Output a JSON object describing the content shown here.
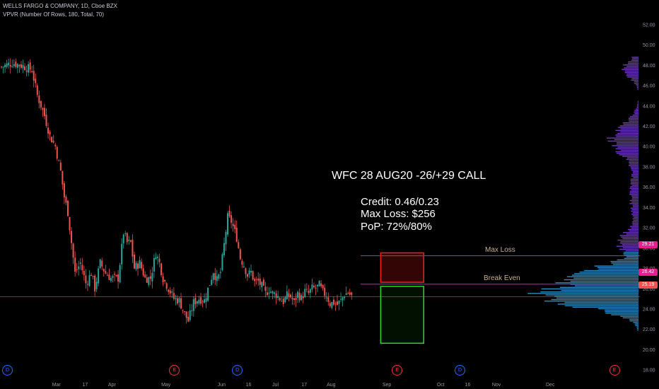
{
  "header": {
    "symbol_line": "WELLS FARGO & COMPANY, 1D, Cboe BZX",
    "indicator_line": "VPVR (Number Of Rows, 180, Total, 70)"
  },
  "annotation": {
    "trade_title": "WFC 28 AUG20  -26/+29 CALL",
    "credit": "Credit: 0.46/0.23",
    "max_loss": "Max Loss: $256",
    "pop": "PoP: 72%/80%",
    "max_loss_label": "Max Loss",
    "break_even_label": "Break Even"
  },
  "price_badges": [
    {
      "value": "29.21",
      "color": "#e91e8c"
    },
    {
      "value": "26.42",
      "color": "#e91e8c"
    },
    {
      "value": "25.19",
      "color": "#ef5350"
    }
  ],
  "events": [
    {
      "label": "D",
      "type": "dividend",
      "color": "#2962ff",
      "day": 0
    },
    {
      "label": "E",
      "type": "earnings",
      "color": "#e53935",
      "day": 93
    },
    {
      "label": "D",
      "type": "dividend",
      "color": "#2962ff",
      "day": 128
    },
    {
      "label": "E",
      "type": "earnings",
      "color": "#e53935",
      "day": 217
    },
    {
      "label": "D",
      "type": "dividend",
      "color": "#2962ff",
      "day": 252
    },
    {
      "label": "E",
      "type": "earnings",
      "color": "#e53935",
      "day": 338
    }
  ],
  "colors": {
    "up": "#26a69a",
    "down": "#ef5350",
    "volume_profile_lower": "#2f9bd8",
    "volume_profile_upper": "#7b3fd6",
    "level_line": "#c028c0",
    "price_line": "#e0506a",
    "loss_box": "#ff1a1a",
    "profit_box": "#22dd22"
  },
  "chart_data": {
    "type": "candlestick",
    "title": "WELLS FARGO & COMPANY, 1D, Cboe BZX",
    "ylim": [
      17.0,
      53.0
    ],
    "y_ticks": [
      "18.00",
      "20.00",
      "22.00",
      "24.00",
      "26.00",
      "28.00",
      "30.00",
      "32.00",
      "34.00",
      "36.00",
      "38.00",
      "40.00",
      "42.00",
      "44.00",
      "46.00",
      "48.00",
      "50.00",
      "52.00"
    ],
    "x_ticks": [
      {
        "label": "Mar",
        "day": 31
      },
      {
        "label": "17",
        "day": 47
      },
      {
        "label": "Apr",
        "day": 62
      },
      {
        "label": "Jun",
        "day": 123
      },
      {
        "label": "16",
        "day": 138
      },
      {
        "label": "Jul",
        "day": 153
      },
      {
        "label": "17",
        "day": 169
      },
      {
        "label": "Aug",
        "day": 184
      },
      {
        "label": "Sep",
        "day": 215
      },
      {
        "label": "Oct",
        "day": 245
      },
      {
        "label": "16",
        "day": 260
      },
      {
        "label": "Nov",
        "day": 276
      },
      {
        "label": "Dec",
        "day": 306
      }
    ],
    "extra_x_ticks": [
      {
        "label": "May",
        "day": 92
      }
    ],
    "close_path": [
      [
        0,
        47.8
      ],
      [
        6,
        48.2
      ],
      [
        12,
        47.9
      ],
      [
        17,
        47.5
      ],
      [
        20,
        45.0
      ],
      [
        24,
        43.0
      ],
      [
        27,
        41.0
      ],
      [
        30,
        40.0
      ],
      [
        33,
        37.5
      ],
      [
        35,
        35.0
      ],
      [
        37,
        33.5
      ],
      [
        39,
        30.5
      ],
      [
        41,
        27.5
      ],
      [
        44,
        28.5
      ],
      [
        47,
        26.5
      ],
      [
        50,
        27.5
      ],
      [
        52,
        26.0
      ],
      [
        55,
        28.5
      ],
      [
        58,
        27.5
      ],
      [
        61,
        27.0
      ],
      [
        65,
        27.0
      ],
      [
        68,
        31.5
      ],
      [
        70,
        30.5
      ],
      [
        72,
        30.5
      ],
      [
        74,
        28.0
      ],
      [
        77,
        28.5
      ],
      [
        80,
        27.0
      ],
      [
        83,
        27.0
      ],
      [
        86,
        29.5
      ],
      [
        88,
        28.5
      ],
      [
        90,
        27.0
      ],
      [
        93,
        26.0
      ],
      [
        96,
        25.0
      ],
      [
        99,
        24.8
      ],
      [
        102,
        23.5
      ],
      [
        104,
        22.8
      ],
      [
        107,
        24.6
      ],
      [
        110,
        25.0
      ],
      [
        113,
        24.8
      ],
      [
        116,
        26.5
      ],
      [
        118,
        27.7
      ],
      [
        120,
        26.8
      ],
      [
        122,
        27.6
      ],
      [
        124,
        30.3
      ],
      [
        126,
        33.0
      ],
      [
        128,
        32.6
      ],
      [
        131,
        31.0
      ],
      [
        133,
        29.0
      ],
      [
        135,
        28.3
      ],
      [
        137,
        27.3
      ],
      [
        139,
        27.6
      ],
      [
        141,
        26.6
      ],
      [
        143,
        26.7
      ],
      [
        145,
        26.2
      ],
      [
        147,
        25.5
      ],
      [
        149,
        25.9
      ],
      [
        151,
        25.5
      ],
      [
        153,
        25.4
      ],
      [
        155,
        25.0
      ],
      [
        157,
        24.7
      ],
      [
        159,
        25.3
      ],
      [
        161,
        25.2
      ],
      [
        163,
        24.6
      ],
      [
        165,
        25.5
      ],
      [
        167,
        25.0
      ],
      [
        169,
        25.7
      ],
      [
        171,
        25.5
      ],
      [
        173,
        26.0
      ],
      [
        175,
        26.0
      ],
      [
        177,
        26.3
      ],
      [
        179,
        25.6
      ],
      [
        181,
        25.3
      ],
      [
        183,
        24.5
      ],
      [
        185,
        24.6
      ],
      [
        187,
        24.4
      ],
      [
        189,
        24.8
      ],
      [
        191,
        25.4
      ],
      [
        193,
        25.6
      ],
      [
        195,
        25.2
      ]
    ],
    "levels": [
      {
        "name": "Max Loss",
        "price": 29.21
      },
      {
        "name": "Break Even",
        "price": 26.42
      },
      {
        "name": "Last Price",
        "price": 25.19
      }
    ],
    "risk_boxes": [
      {
        "name": "loss-zone",
        "from_day": 197,
        "to_day": 219,
        "low": 26.6,
        "high": 29.5
      },
      {
        "name": "profit-zone",
        "from_day": 197,
        "to_day": 219,
        "low": 20.6,
        "high": 26.2
      }
    ],
    "volume_profile_peak_price": 25.2
  }
}
